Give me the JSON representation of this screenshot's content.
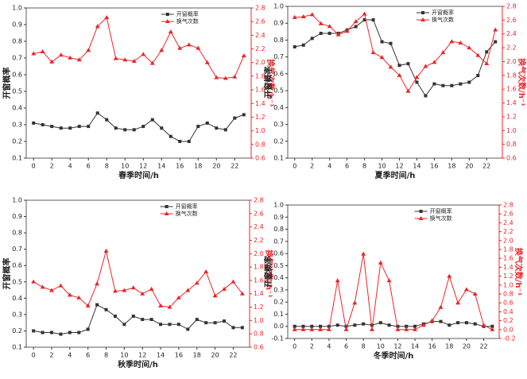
{
  "chart_data": [
    {
      "type": "line",
      "xlabel": "春季时间/h",
      "ylabel": "开窗概率",
      "y2label": "换气次数/h⁻¹",
      "legend": "upper right",
      "x": [
        0,
        1,
        2,
        3,
        4,
        5,
        6,
        7,
        8,
        9,
        10,
        11,
        12,
        13,
        14,
        15,
        16,
        17,
        18,
        19,
        20,
        21,
        22,
        23
      ],
      "xlim": [
        -0.8,
        23.8
      ],
      "xticks": [
        0,
        2,
        4,
        6,
        8,
        10,
        12,
        14,
        16,
        18,
        20,
        22
      ],
      "ylim": [
        0.1,
        1.0
      ],
      "yticks": [
        0.1,
        0.2,
        0.3,
        0.4,
        0.5,
        0.6,
        0.7,
        0.8,
        0.9,
        {
          "value": 1.0,
          "label": "1.0"
        }
      ],
      "y2lim": [
        0.6,
        2.8
      ],
      "y2ticks": [
        0.6,
        0.8,
        {
          "value": 1.0,
          "label": "1.0"
        },
        1.2,
        1.4,
        1.6,
        1.8,
        {
          "value": 2.0,
          "label": "2.0"
        },
        2.2,
        2.4,
        2.6,
        2.8
      ],
      "series": [
        {
          "name": "开窗概率",
          "color": "#333333",
          "values": [
            0.31,
            0.3,
            0.29,
            0.28,
            0.28,
            0.29,
            0.29,
            0.37,
            0.33,
            0.28,
            0.27,
            0.27,
            0.29,
            0.33,
            0.28,
            0.23,
            0.2,
            0.2,
            0.29,
            0.31,
            0.28,
            0.27,
            0.34,
            0.36
          ]
        },
        {
          "name": "换气次数",
          "color": "#e8262b",
          "axis": "y2",
          "values": [
            2.13,
            2.16,
            2.01,
            2.11,
            2.07,
            2.04,
            2.18,
            2.53,
            2.66,
            2.06,
            2.04,
            2.02,
            2.12,
            1.99,
            2.18,
            2.45,
            2.21,
            2.26,
            2.21,
            2.0,
            1.78,
            1.77,
            1.79,
            2.1
          ]
        }
      ]
    },
    {
      "type": "line",
      "xlabel": "夏季时间/h",
      "ylabel": "开窗概率",
      "y2label": "换气次数/h⁻¹",
      "legend": "upper right",
      "x": [
        0,
        1,
        2,
        3,
        4,
        5,
        6,
        7,
        8,
        9,
        10,
        11,
        12,
        13,
        14,
        15,
        16,
        17,
        18,
        19,
        20,
        21,
        22,
        23
      ],
      "xlim": [
        -0.8,
        23.8
      ],
      "xticks": [
        0,
        2,
        4,
        6,
        8,
        10,
        12,
        14,
        16,
        18,
        20,
        22
      ],
      "ylim": [
        0.1,
        1.0
      ],
      "yticks": [
        0.1,
        0.2,
        0.3,
        0.4,
        0.5,
        0.6,
        0.7,
        0.8,
        0.9,
        {
          "value": 1.0,
          "label": "1.0"
        }
      ],
      "y2lim": [
        0.6,
        2.8
      ],
      "y2ticks": [
        0.6,
        0.8,
        {
          "value": 1.0,
          "label": "1.0"
        },
        1.2,
        1.4,
        1.6,
        1.8,
        {
          "value": 2.0,
          "label": "2.0"
        },
        2.2,
        2.4,
        2.6,
        2.8
      ],
      "series": [
        {
          "name": "开窗概率",
          "color": "#333333",
          "values": [
            0.76,
            0.77,
            0.81,
            0.84,
            0.84,
            0.84,
            0.86,
            0.88,
            0.92,
            0.92,
            0.79,
            0.78,
            0.65,
            0.66,
            0.55,
            0.47,
            0.54,
            0.53,
            0.53,
            0.54,
            0.55,
            0.59,
            0.73,
            0.79
          ]
        },
        {
          "name": "换气次数",
          "color": "#e8262b",
          "axis": "y2",
          "values": [
            2.64,
            2.65,
            2.68,
            2.55,
            2.51,
            2.39,
            2.44,
            2.58,
            2.69,
            2.13,
            2.06,
            1.92,
            1.8,
            1.57,
            1.77,
            1.93,
            1.99,
            2.13,
            2.29,
            2.27,
            2.2,
            2.09,
            1.97,
            2.46
          ]
        }
      ]
    },
    {
      "type": "line",
      "xlabel": "秋季时间/h",
      "ylabel": "开窗概率",
      "y2label": "换气次数/h⁻¹",
      "legend": "upper right",
      "x": [
        0,
        1,
        2,
        3,
        4,
        5,
        6,
        7,
        8,
        9,
        10,
        11,
        12,
        13,
        14,
        15,
        16,
        17,
        18,
        19,
        20,
        21,
        22,
        23
      ],
      "xlim": [
        -0.8,
        23.8
      ],
      "xticks": [
        0,
        2,
        4,
        6,
        8,
        10,
        12,
        14,
        16,
        18,
        20,
        22
      ],
      "ylim": [
        0.1,
        1.0
      ],
      "yticks": [
        0.1,
        0.2,
        0.3,
        0.4,
        0.5,
        0.6,
        0.7,
        0.8,
        0.9,
        {
          "value": 1.0,
          "label": "1.0"
        }
      ],
      "y2lim": [
        0.6,
        2.8
      ],
      "y2ticks": [
        0.6,
        0.8,
        {
          "value": 1.0,
          "label": "1.0"
        },
        1.2,
        1.4,
        1.6,
        1.8,
        {
          "value": 2.0,
          "label": "2.0"
        },
        2.2,
        2.4,
        2.6,
        2.8
      ],
      "series": [
        {
          "name": "开窗概率",
          "color": "#333333",
          "values": [
            0.2,
            0.19,
            0.19,
            0.18,
            0.19,
            0.19,
            0.21,
            0.36,
            0.33,
            0.29,
            0.24,
            0.29,
            0.27,
            0.27,
            0.24,
            0.24,
            0.24,
            0.21,
            0.27,
            0.25,
            0.25,
            0.26,
            0.22,
            0.22
          ]
        },
        {
          "name": "换气次数",
          "color": "#e8262b",
          "axis": "y2",
          "values": [
            1.58,
            1.5,
            1.45,
            1.52,
            1.38,
            1.34,
            1.22,
            1.55,
            2.04,
            1.44,
            1.45,
            1.49,
            1.4,
            1.47,
            1.22,
            1.2,
            1.34,
            1.45,
            1.56,
            1.73,
            1.37,
            1.47,
            1.58,
            1.4
          ]
        }
      ]
    },
    {
      "type": "line",
      "xlabel": "冬季时间/h",
      "ylabel": "开窗概率",
      "y2label": "换气次数/h⁻¹",
      "legend": "upper right",
      "x": [
        0,
        1,
        2,
        3,
        4,
        5,
        6,
        7,
        8,
        9,
        10,
        11,
        12,
        13,
        14,
        15,
        16,
        17,
        18,
        19,
        20,
        21,
        22,
        23
      ],
      "xlim": [
        -0.8,
        23.8
      ],
      "xticks": [
        0,
        2,
        4,
        6,
        8,
        10,
        12,
        14,
        16,
        18,
        20,
        22
      ],
      "ylim": [
        -0.1,
        1.0
      ],
      "yticks": [
        -0.1,
        {
          "value": 0.0,
          "label": "0.0"
        },
        0.1,
        0.2,
        0.3,
        0.4,
        0.5,
        0.6,
        0.7,
        0.8,
        0.9,
        {
          "value": 1.0,
          "label": "1.0"
        }
      ],
      "y2lim": [
        -0.2,
        2.8
      ],
      "y2ticks": [
        -0.2,
        {
          "value": 0.0,
          "label": "0.0"
        },
        0.2,
        0.4,
        0.6,
        0.8,
        {
          "value": 1.0,
          "label": "1.0"
        },
        1.2,
        1.4,
        1.6,
        1.8,
        {
          "value": 2.0,
          "label": "2.0"
        },
        2.2,
        2.4,
        2.6,
        2.8
      ],
      "series": [
        {
          "name": "开窗概率",
          "color": "#333333",
          "values": [
            0,
            0,
            0,
            0,
            0,
            0.01,
            0,
            0.01,
            0.02,
            0.01,
            0.03,
            0.01,
            0,
            0,
            0,
            0.02,
            0.04,
            0.04,
            0.01,
            0.03,
            0.03,
            0.02,
            0,
            0
          ]
        },
        {
          "name": "换气次数",
          "color": "#e8262b",
          "axis": "y2",
          "values": [
            0,
            0,
            0,
            0,
            0,
            1.1,
            0,
            0.6,
            1.7,
            0,
            1.5,
            1.1,
            0,
            0,
            0,
            0.1,
            0.2,
            0.5,
            1.2,
            0.6,
            0.9,
            0.8,
            0.1,
            0
          ]
        }
      ]
    }
  ]
}
